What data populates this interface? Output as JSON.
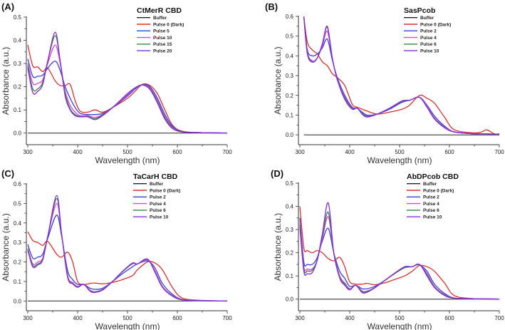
{
  "chart_data": [
    {
      "type": "line",
      "panel_label": "(A)",
      "title": "CtMerR CBD",
      "xlabel": "Wavelength (nm)",
      "ylabel": "Absorbance (a.u.)",
      "xlim": [
        300,
        700
      ],
      "ylim": [
        -0.05,
        0.5
      ],
      "xticks": [
        "300",
        "400",
        "500",
        "600",
        "700"
      ],
      "yticks": [
        "0.0",
        "0.1",
        "0.2",
        "0.3",
        "0.4",
        "0.5"
      ],
      "legend": "top-right",
      "x": [
        300,
        310,
        320,
        330,
        340,
        355,
        365,
        375,
        385,
        395,
        405,
        420,
        435,
        450,
        470,
        500,
        515,
        530,
        545,
        560,
        575,
        590,
        610,
        650,
        700
      ],
      "series": [
        {
          "name": "Buffer",
          "color": "#222222",
          "values": [
            0,
            0,
            0,
            0,
            0,
            0,
            0,
            0,
            0,
            0,
            0,
            0,
            0,
            0,
            0,
            0,
            0,
            0,
            0,
            0,
            0,
            0,
            0,
            0,
            0
          ]
        },
        {
          "name": "Pulse 0 (Dark)",
          "color": "#e0302f",
          "values": [
            0.38,
            0.29,
            0.285,
            0.265,
            0.28,
            0.225,
            0.205,
            0.205,
            0.21,
            0.14,
            0.095,
            0.09,
            0.1,
            0.09,
            0.11,
            0.15,
            0.18,
            0.21,
            0.205,
            0.17,
            0.1,
            0.035,
            0.008,
            0.002,
            0
          ]
        },
        {
          "name": "Pulse 5",
          "color": "#3a3fd8",
          "values": [
            0.32,
            0.245,
            0.245,
            0.25,
            0.28,
            0.31,
            0.27,
            0.2,
            0.15,
            0.11,
            0.085,
            0.08,
            0.08,
            0.085,
            0.11,
            0.16,
            0.19,
            0.21,
            0.2,
            0.15,
            0.08,
            0.03,
            0.006,
            0.002,
            0
          ]
        },
        {
          "name": "Pulse 10",
          "color": "#e040e0",
          "values": [
            0.3,
            0.215,
            0.215,
            0.23,
            0.3,
            0.38,
            0.3,
            0.18,
            0.12,
            0.09,
            0.075,
            0.075,
            0.068,
            0.08,
            0.11,
            0.165,
            0.195,
            0.208,
            0.195,
            0.14,
            0.07,
            0.025,
            0.005,
            0.002,
            0
          ]
        },
        {
          "name": "Pulse 15",
          "color": "#2e8b3a",
          "values": [
            0.29,
            0.19,
            0.19,
            0.22,
            0.31,
            0.42,
            0.31,
            0.17,
            0.105,
            0.08,
            0.072,
            0.072,
            0.062,
            0.078,
            0.11,
            0.17,
            0.195,
            0.208,
            0.19,
            0.135,
            0.065,
            0.022,
            0.005,
            0.002,
            0
          ]
        },
        {
          "name": "Pulse 20",
          "color": "#8a2be2",
          "values": [
            0.28,
            0.175,
            0.18,
            0.21,
            0.31,
            0.435,
            0.31,
            0.16,
            0.1,
            0.075,
            0.07,
            0.07,
            0.058,
            0.075,
            0.11,
            0.17,
            0.195,
            0.207,
            0.188,
            0.13,
            0.06,
            0.02,
            0.005,
            0.002,
            0
          ]
        }
      ]
    },
    {
      "type": "line",
      "panel_label": "(B)",
      "title": "SasPcob",
      "xlabel": "Wavelength (nm)",
      "ylabel": "Absorbance (a.u.)",
      "xlim": [
        300,
        700
      ],
      "ylim": [
        -0.05,
        0.6
      ],
      "xticks": [
        "300",
        "400",
        "500",
        "600",
        "700"
      ],
      "yticks": [
        "0.0",
        "0.1",
        "0.2",
        "0.3",
        "0.4",
        "0.5",
        "0.6"
      ],
      "legend": "top-right",
      "x": [
        308,
        315,
        325,
        335,
        345,
        355,
        365,
        375,
        390,
        405,
        415,
        425,
        435,
        455,
        480,
        505,
        520,
        540,
        555,
        570,
        590,
        610,
        650,
        665,
        675,
        690,
        700
      ],
      "series": [
        {
          "name": "Buffer",
          "color": "#222222",
          "values": [
            0,
            0,
            0,
            0,
            0,
            0,
            0,
            0,
            0,
            0,
            0,
            0,
            0,
            0,
            0,
            0,
            0,
            0,
            0,
            0,
            0,
            0,
            0,
            0,
            0,
            0,
            0
          ]
        },
        {
          "name": "Pulse 0 (Dark)",
          "color": "#e0302f",
          "values": [
            0.6,
            0.47,
            0.43,
            0.41,
            0.37,
            0.35,
            0.31,
            0.29,
            0.25,
            0.155,
            0.14,
            0.13,
            0.12,
            0.105,
            0.115,
            0.13,
            0.15,
            0.2,
            0.185,
            0.16,
            0.09,
            0.025,
            0.01,
            0.015,
            0.025,
            0.005,
            0.005
          ]
        },
        {
          "name": "Pulse 2",
          "color": "#3a3fd8",
          "values": [
            0.6,
            0.43,
            0.4,
            0.41,
            0.44,
            0.485,
            0.38,
            0.29,
            0.2,
            0.14,
            0.135,
            0.115,
            0.1,
            0.105,
            0.13,
            0.165,
            0.175,
            0.19,
            0.15,
            0.095,
            0.045,
            0.015,
            0.005,
            0.005,
            0.005,
            0.003,
            0.003
          ]
        },
        {
          "name": "Pulse 4",
          "color": "#e040e0",
          "values": [
            0.6,
            0.42,
            0.375,
            0.39,
            0.45,
            0.525,
            0.39,
            0.28,
            0.19,
            0.135,
            0.135,
            0.11,
            0.095,
            0.105,
            0.135,
            0.17,
            0.175,
            0.19,
            0.145,
            0.085,
            0.04,
            0.015,
            0.005,
            0.005,
            0.005,
            0.003,
            0.003
          ]
        },
        {
          "name": "Pulse 6",
          "color": "#2e8b3a",
          "values": [
            0.6,
            0.415,
            0.37,
            0.39,
            0.46,
            0.545,
            0.39,
            0.28,
            0.185,
            0.133,
            0.135,
            0.108,
            0.093,
            0.105,
            0.135,
            0.17,
            0.175,
            0.19,
            0.14,
            0.082,
            0.038,
            0.014,
            0.005,
            0.005,
            0.005,
            0.003,
            0.003
          ]
        },
        {
          "name": "Pulse 10",
          "color": "#8a2be2",
          "values": [
            0.6,
            0.41,
            0.368,
            0.39,
            0.46,
            0.55,
            0.39,
            0.28,
            0.18,
            0.13,
            0.135,
            0.105,
            0.09,
            0.105,
            0.135,
            0.172,
            0.175,
            0.19,
            0.14,
            0.08,
            0.036,
            0.014,
            0.005,
            0.005,
            0.005,
            0.003,
            0.003
          ]
        }
      ]
    },
    {
      "type": "line",
      "panel_label": "(C)",
      "title": "TaCarH CBD",
      "xlabel": "Wavelength (nm)",
      "ylabel": "Absorbance (a.u.)",
      "xlim": [
        300,
        700
      ],
      "ylim": [
        -0.05,
        0.6
      ],
      "xticks": [
        "300",
        "400",
        "500",
        "600",
        "700"
      ],
      "yticks": [
        "0.0",
        "0.1",
        "0.2",
        "0.3",
        "0.4",
        "0.5",
        "0.6"
      ],
      "legend": "top-right",
      "x": [
        300,
        310,
        320,
        330,
        340,
        358,
        368,
        380,
        390,
        400,
        412,
        425,
        435,
        450,
        470,
        490,
        510,
        520,
        540,
        555,
        570,
        590,
        610,
        650,
        700
      ],
      "series": [
        {
          "name": "Buffer",
          "color": "#222222",
          "values": [
            0,
            0,
            0,
            0,
            0,
            0,
            0,
            0,
            0,
            0,
            0,
            0,
            0,
            0,
            0,
            0,
            0,
            0,
            0,
            0,
            0,
            0,
            0,
            0,
            0
          ]
        },
        {
          "name": "Pulse 0 (Dark)",
          "color": "#e0302f",
          "values": [
            0.355,
            0.31,
            0.3,
            0.285,
            0.305,
            0.24,
            0.225,
            0.25,
            0.2,
            0.1,
            0.085,
            0.09,
            0.092,
            0.088,
            0.095,
            0.11,
            0.13,
            0.16,
            0.2,
            0.195,
            0.16,
            0.07,
            0.015,
            0.003,
            0
          ]
        },
        {
          "name": "Pulse 2",
          "color": "#3a3fd8",
          "values": [
            0.29,
            0.22,
            0.225,
            0.24,
            0.32,
            0.44,
            0.33,
            0.155,
            0.11,
            0.085,
            0.085,
            0.065,
            0.06,
            0.065,
            0.1,
            0.14,
            0.175,
            0.19,
            0.205,
            0.17,
            0.09,
            0.035,
            0.008,
            0.002,
            0
          ]
        },
        {
          "name": "Pulse 4",
          "color": "#e040e0",
          "values": [
            0.27,
            0.19,
            0.2,
            0.22,
            0.33,
            0.5,
            0.34,
            0.13,
            0.095,
            0.075,
            0.085,
            0.055,
            0.048,
            0.06,
            0.1,
            0.15,
            0.19,
            0.19,
            0.21,
            0.155,
            0.075,
            0.028,
            0.007,
            0.002,
            0
          ]
        },
        {
          "name": "Pulse 6",
          "color": "#2e8b3a",
          "values": [
            0.265,
            0.182,
            0.19,
            0.215,
            0.33,
            0.525,
            0.34,
            0.125,
            0.09,
            0.072,
            0.085,
            0.052,
            0.046,
            0.058,
            0.1,
            0.15,
            0.193,
            0.19,
            0.213,
            0.15,
            0.072,
            0.026,
            0.006,
            0.002,
            0
          ]
        },
        {
          "name": "Pulse 10",
          "color": "#8a2be2",
          "values": [
            0.26,
            0.175,
            0.185,
            0.21,
            0.33,
            0.54,
            0.34,
            0.12,
            0.088,
            0.07,
            0.085,
            0.05,
            0.044,
            0.056,
            0.1,
            0.152,
            0.195,
            0.19,
            0.215,
            0.148,
            0.07,
            0.025,
            0.006,
            0.002,
            0
          ]
        }
      ]
    },
    {
      "type": "line",
      "panel_label": "(D)",
      "title": "AbDPcob CBD",
      "xlabel": "Wavelength (nm)",
      "ylabel": "Absorbance (a.u.)",
      "xlim": [
        300,
        700
      ],
      "ylim": [
        -0.05,
        0.5
      ],
      "xticks": [
        "300",
        "400",
        "500",
        "600",
        "700"
      ],
      "yticks": [
        "0.0",
        "0.1",
        "0.2",
        "0.3",
        "0.4",
        "0.5"
      ],
      "legend": "top-right",
      "x": [
        300,
        308,
        315,
        325,
        335,
        345,
        357,
        368,
        380,
        390,
        400,
        412,
        425,
        435,
        450,
        470,
        490,
        510,
        525,
        540,
        555,
        570,
        590,
        610,
        650,
        700
      ],
      "series": [
        {
          "name": "Buffer",
          "color": "#222222",
          "values": [
            0,
            0,
            0,
            0,
            0,
            0,
            0,
            0,
            0,
            0,
            0,
            0,
            0,
            0,
            0,
            0,
            0,
            0,
            0,
            0,
            0,
            0,
            0,
            0,
            0,
            0
          ]
        },
        {
          "name": "Pulse 0 (Dark)",
          "color": "#e0302f",
          "values": [
            0.4,
            0.22,
            0.21,
            0.2,
            0.21,
            0.2,
            0.175,
            0.165,
            0.18,
            0.14,
            0.075,
            0.065,
            0.065,
            0.068,
            0.062,
            0.07,
            0.085,
            0.1,
            0.12,
            0.145,
            0.14,
            0.12,
            0.07,
            0.015,
            0.002,
            0
          ]
        },
        {
          "name": "Pulse 2",
          "color": "#3a3fd8",
          "values": [
            0.35,
            0.16,
            0.15,
            0.15,
            0.18,
            0.25,
            0.305,
            0.2,
            0.12,
            0.09,
            0.055,
            0.06,
            0.045,
            0.045,
            0.055,
            0.08,
            0.11,
            0.135,
            0.14,
            0.148,
            0.12,
            0.065,
            0.025,
            0.005,
            0.002,
            0
          ]
        },
        {
          "name": "Pulse 4",
          "color": "#e040e0",
          "values": [
            0.33,
            0.14,
            0.13,
            0.13,
            0.17,
            0.26,
            0.355,
            0.2,
            0.1,
            0.07,
            0.045,
            0.06,
            0.035,
            0.035,
            0.05,
            0.08,
            0.11,
            0.135,
            0.14,
            0.148,
            0.11,
            0.055,
            0.02,
            0.004,
            0.002,
            0
          ]
        },
        {
          "name": "Pulse 6",
          "color": "#2e8b3a",
          "values": [
            0.32,
            0.13,
            0.122,
            0.125,
            0.17,
            0.27,
            0.375,
            0.2,
            0.095,
            0.065,
            0.042,
            0.06,
            0.032,
            0.033,
            0.05,
            0.08,
            0.11,
            0.137,
            0.14,
            0.148,
            0.105,
            0.052,
            0.018,
            0.004,
            0.002,
            0
          ]
        },
        {
          "name": "Pulse 10",
          "color": "#8a2be2",
          "values": [
            0.31,
            0.12,
            0.11,
            0.115,
            0.17,
            0.28,
            0.415,
            0.2,
            0.09,
            0.06,
            0.04,
            0.06,
            0.028,
            0.03,
            0.048,
            0.08,
            0.112,
            0.14,
            0.14,
            0.15,
            0.1,
            0.05,
            0.016,
            0.004,
            0.002,
            0
          ]
        }
      ]
    }
  ]
}
